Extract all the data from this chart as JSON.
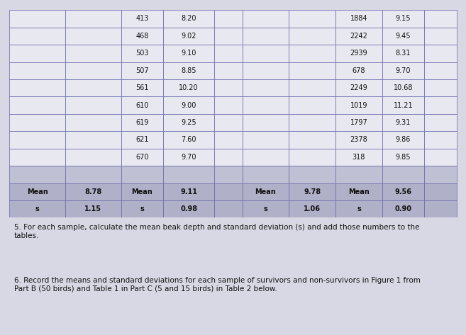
{
  "left_col1": [
    "413",
    "468",
    "503",
    "507",
    "561",
    "610",
    "619",
    "621",
    "670"
  ],
  "left_col2": [
    "8.20",
    "9.02",
    "9.10",
    "8.85",
    "10.20",
    "9.00",
    "9.25",
    "7.60",
    "9.70"
  ],
  "right_col1": [
    "1884",
    "2242",
    "2939",
    "678",
    "2249",
    "1019",
    "1797",
    "2378",
    "318"
  ],
  "right_col2": [
    "9.15",
    "9.45",
    "8.31",
    "9.70",
    "10.68",
    "11.21",
    "9.31",
    "9.86",
    "9.85"
  ],
  "left_mean_label": "Mean",
  "left_mean_val": "8.78",
  "left_mean_label2": "Mean",
  "left_mean_val2": "9.11",
  "left_s_label": "s",
  "left_s_val": "1.15",
  "left_s_label2": "s",
  "left_s_val2": "0.98",
  "right_mean_label": "Mean",
  "right_mean_val": "9.78",
  "right_mean_label2": "Mean",
  "right_mean_val2": "9.56",
  "right_s_label": "s",
  "right_s_val": "1.06",
  "right_s_label2": "s",
  "right_s_val2": "0.90",
  "text1_num": "5.",
  "text1_body": " For each sample, calculate the mean beak depth and standard deviation (s) and add those numbers to the\ntables.",
  "text2_num": "6.",
  "text2_body": " Record the means and standard deviations for each sample of survivors and non-survivors in Figure 1 from\nPart B (50 birds) and Table 1 in Part C (5 and 15 birds) in Table 2 below.",
  "page_bg": "#d8d8e4",
  "row_bg": "#e8e8f0",
  "row_bg_alt": "#dcdce8",
  "stat_bg": "#b0b0c8",
  "blank_bg": "#c0c0d4",
  "line_color": "#6666aa",
  "text_color": "#111111",
  "stat_text_color": "#111111",
  "fontsize_cell": 7.0,
  "fontsize_text": 7.5
}
